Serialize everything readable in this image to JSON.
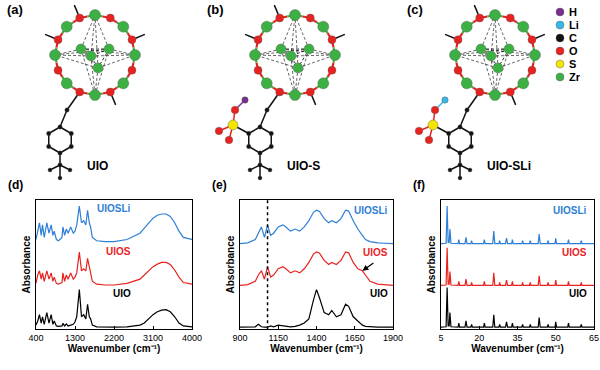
{
  "diagrams": {
    "panels": [
      {
        "label": "(a)",
        "name": "UIO",
        "cation": null
      },
      {
        "label": "(b)",
        "name": "UIO-S",
        "cation": "H"
      },
      {
        "label": "(c)",
        "name": "UIO-SLi",
        "cation": "Li"
      }
    ],
    "atom_legend": [
      {
        "symbol": "H",
        "color": "#7a2f8f"
      },
      {
        "symbol": "Li",
        "color": "#37b8e6"
      },
      {
        "symbol": "C",
        "color": "#111111"
      },
      {
        "symbol": "O",
        "color": "#e8231f"
      },
      {
        "symbol": "S",
        "color": "#f2e600"
      },
      {
        "symbol": "Zr",
        "color": "#3cb043"
      }
    ]
  },
  "chart_data": [
    {
      "type": "line",
      "title": "(d)",
      "x_label": "Wavenumber (cm⁻¹)",
      "y_label": "Absorbance",
      "xlim": [
        400,
        4000
      ],
      "xticks": [
        400,
        1300,
        2200,
        3100,
        4000
      ],
      "ylim": [
        0,
        3.1
      ],
      "tick_labels": "x",
      "grid": false,
      "x": [
        400,
        440,
        480,
        520,
        550,
        590,
        650,
        700,
        750,
        790,
        820,
        870,
        920,
        1000,
        1020,
        1060,
        1100,
        1140,
        1200,
        1260,
        1300,
        1340,
        1400,
        1450,
        1500,
        1550,
        1590,
        1630,
        1660,
        1700,
        1800,
        2000,
        2200,
        2500,
        2800,
        2900,
        3000,
        3100,
        3200,
        3300,
        3400,
        3500,
        3600,
        3700,
        3800,
        4000
      ],
      "series": [
        {
          "name": "UIOSLi",
          "color": "#2e7fd6",
          "values": [
            2.15,
            2.4,
            2.55,
            2.25,
            2.5,
            2.2,
            2.55,
            2.3,
            2.5,
            2.25,
            2.35,
            2.15,
            2.12,
            2.2,
            2.45,
            2.25,
            2.4,
            2.3,
            2.45,
            2.3,
            2.35,
            2.5,
            2.95,
            2.55,
            2.6,
            2.5,
            2.85,
            2.55,
            2.45,
            2.2,
            2.12,
            2.1,
            2.1,
            2.15,
            2.3,
            2.42,
            2.55,
            2.66,
            2.73,
            2.76,
            2.76,
            2.7,
            2.55,
            2.35,
            2.2,
            2.15
          ]
        },
        {
          "name": "UIOS",
          "color": "#e8231f",
          "values": [
            1.1,
            1.3,
            1.4,
            1.2,
            1.35,
            1.15,
            1.4,
            1.2,
            1.35,
            1.15,
            1.25,
            1.1,
            1.08,
            1.12,
            1.35,
            1.15,
            1.3,
            1.2,
            1.35,
            1.2,
            1.25,
            1.35,
            1.85,
            1.4,
            1.45,
            1.4,
            1.7,
            1.45,
            1.35,
            1.15,
            1.08,
            1.06,
            1.06,
            1.1,
            1.2,
            1.3,
            1.4,
            1.5,
            1.56,
            1.6,
            1.6,
            1.55,
            1.42,
            1.25,
            1.12,
            1.08
          ]
        },
        {
          "name": "UIO",
          "color": "#000000",
          "values": [
            0.1,
            0.2,
            0.35,
            0.15,
            0.3,
            0.12,
            0.4,
            0.15,
            0.35,
            0.12,
            0.2,
            0.08,
            0.07,
            0.08,
            0.14,
            0.08,
            0.13,
            0.08,
            0.1,
            0.12,
            0.18,
            0.3,
            0.95,
            0.3,
            0.35,
            0.25,
            0.6,
            0.3,
            0.25,
            0.1,
            0.06,
            0.05,
            0.05,
            0.06,
            0.1,
            0.15,
            0.25,
            0.35,
            0.42,
            0.46,
            0.47,
            0.42,
            0.3,
            0.15,
            0.08,
            0.06
          ]
        }
      ]
    },
    {
      "type": "line",
      "title": "(e)",
      "x_label": "Wavenumber (cm⁻¹)",
      "y_label": "Absorbance",
      "xlim": [
        900,
        1900
      ],
      "xticks": [
        900,
        1150,
        1400,
        1650,
        1900
      ],
      "ylim": [
        0,
        3.1
      ],
      "tick_labels": "x",
      "grid": false,
      "reference_line": {
        "x": 1080,
        "line_style": "dotted"
      },
      "arrow": {
        "x": 1700,
        "y": 1.4
      },
      "x": [
        900,
        950,
        1000,
        1020,
        1040,
        1060,
        1080,
        1100,
        1120,
        1150,
        1180,
        1200,
        1230,
        1260,
        1290,
        1320,
        1350,
        1380,
        1400,
        1420,
        1450,
        1480,
        1500,
        1530,
        1560,
        1590,
        1610,
        1640,
        1670,
        1700,
        1720,
        1750,
        1800,
        1850,
        1900
      ],
      "series": [
        {
          "name": "UIOSLi",
          "color": "#2e7fd6",
          "values": [
            2.05,
            2.07,
            2.15,
            2.3,
            2.45,
            2.2,
            2.5,
            2.25,
            2.3,
            2.45,
            2.5,
            2.45,
            2.35,
            2.4,
            2.35,
            2.45,
            2.6,
            2.8,
            2.85,
            2.82,
            2.65,
            2.55,
            2.6,
            2.55,
            2.65,
            2.85,
            2.83,
            2.6,
            2.4,
            2.25,
            2.15,
            2.1,
            2.07,
            2.06,
            2.05
          ]
        },
        {
          "name": "UIOS",
          "color": "#e8231f",
          "values": [
            1.05,
            1.07,
            1.15,
            1.3,
            1.4,
            1.2,
            1.5,
            1.25,
            1.3,
            1.45,
            1.5,
            1.45,
            1.35,
            1.4,
            1.35,
            1.45,
            1.6,
            1.8,
            1.85,
            1.82,
            1.65,
            1.55,
            1.6,
            1.55,
            1.65,
            1.85,
            1.83,
            1.6,
            1.45,
            1.4,
            1.3,
            1.15,
            1.08,
            1.06,
            1.05
          ]
        },
        {
          "name": "UIO",
          "color": "#000000",
          "values": [
            0.05,
            0.05,
            0.06,
            0.12,
            0.06,
            0.05,
            0.05,
            0.08,
            0.06,
            0.1,
            0.08,
            0.07,
            0.06,
            0.07,
            0.1,
            0.15,
            0.25,
            0.7,
            0.95,
            0.75,
            0.4,
            0.35,
            0.45,
            0.3,
            0.35,
            0.6,
            0.55,
            0.3,
            0.2,
            0.1,
            0.07,
            0.06,
            0.05,
            0.05,
            0.05
          ]
        }
      ]
    },
    {
      "type": "line",
      "title": "(f)",
      "x_label": "Wavenumber (cm⁻¹)",
      "y_label": "Absorbance",
      "xlim": [
        5,
        65
      ],
      "xticks": [
        5,
        20,
        35,
        50,
        65
      ],
      "ylim": [
        0,
        3.1
      ],
      "tick_labels": "x",
      "grid": false,
      "x": [
        5,
        7,
        7.4,
        7.8,
        8.2,
        8.5,
        8.9,
        11.7,
        12,
        12.3,
        14.4,
        14.8,
        15.2,
        16.7,
        17,
        17.3,
        21.7,
        22,
        22.3,
        25.3,
        25.7,
        26.1,
        27.7,
        28,
        28.3,
        30.3,
        30.7,
        31.1,
        32.7,
        33,
        33.3,
        36.7,
        37,
        37.3,
        39.7,
        40,
        40.3,
        43.1,
        43.5,
        43.9,
        46.7,
        47,
        47.3,
        49.7,
        50,
        50.3,
        54.7,
        55,
        55.3,
        59.7,
        60,
        60.3,
        65
      ],
      "series": [
        {
          "name": "UIOSLi",
          "color": "#2e7fd6",
          "values": [
            2.05,
            2.06,
            2.95,
            2.08,
            2.08,
            2.4,
            2.06,
            2.05,
            2.15,
            2.05,
            2.05,
            2.2,
            2.05,
            2.05,
            2.12,
            2.05,
            2.05,
            2.15,
            2.05,
            2.05,
            2.35,
            2.05,
            2.05,
            2.12,
            2.05,
            2.05,
            2.18,
            2.05,
            2.05,
            2.15,
            2.05,
            2.05,
            2.12,
            2.05,
            2.05,
            2.12,
            2.05,
            2.05,
            2.28,
            2.05,
            2.05,
            2.12,
            2.05,
            2.05,
            2.18,
            2.05,
            2.05,
            2.15,
            2.05,
            2.05,
            2.12,
            2.05,
            2.05
          ]
        },
        {
          "name": "UIOS",
          "color": "#e8231f",
          "values": [
            1.05,
            1.06,
            1.95,
            1.08,
            1.08,
            1.38,
            1.06,
            1.05,
            1.15,
            1.05,
            1.05,
            1.2,
            1.05,
            1.05,
            1.12,
            1.05,
            1.05,
            1.15,
            1.05,
            1.05,
            1.35,
            1.05,
            1.05,
            1.12,
            1.05,
            1.05,
            1.18,
            1.05,
            1.05,
            1.15,
            1.05,
            1.05,
            1.12,
            1.05,
            1.05,
            1.12,
            1.05,
            1.05,
            1.28,
            1.05,
            1.05,
            1.12,
            1.05,
            1.05,
            1.18,
            1.05,
            1.05,
            1.15,
            1.05,
            1.05,
            1.12,
            1.05,
            1.05
          ]
        },
        {
          "name": "UIO",
          "color": "#000000",
          "values": [
            0.05,
            0.06,
            1.0,
            0.08,
            0.08,
            0.4,
            0.06,
            0.05,
            0.15,
            0.05,
            0.05,
            0.2,
            0.05,
            0.05,
            0.12,
            0.05,
            0.05,
            0.15,
            0.05,
            0.05,
            0.35,
            0.05,
            0.05,
            0.12,
            0.05,
            0.05,
            0.18,
            0.05,
            0.05,
            0.15,
            0.05,
            0.05,
            0.12,
            0.05,
            0.05,
            0.12,
            0.05,
            0.05,
            0.28,
            0.05,
            0.05,
            0.12,
            0.05,
            0.05,
            0.18,
            0.05,
            0.05,
            0.15,
            0.05,
            0.05,
            0.12,
            0.05,
            0.05
          ]
        }
      ]
    }
  ]
}
